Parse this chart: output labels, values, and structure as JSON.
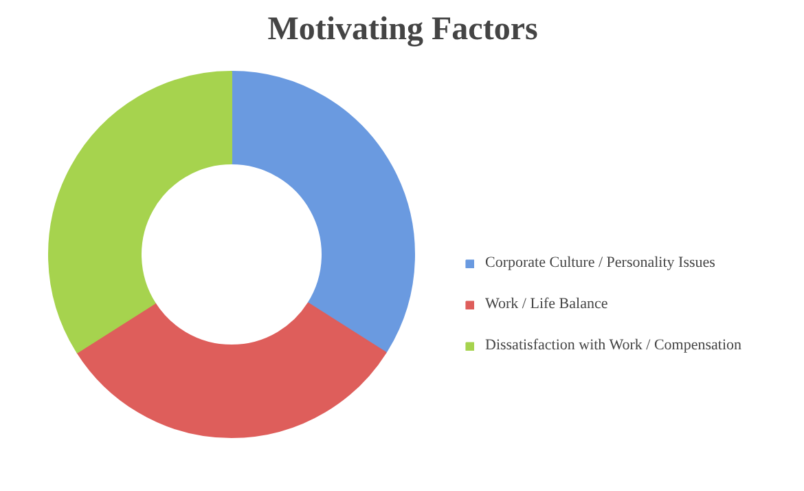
{
  "chart_data": {
    "type": "donut",
    "title": "Motivating Factors",
    "categories": [
      "Corporate Culture / Personality Issues",
      "Work / Life Balance",
      "Dissatisfaction with Work / Compensation"
    ],
    "values": [
      34,
      32,
      34
    ],
    "colors": [
      "#6a9ae0",
      "#de5e5b",
      "#a6d34e"
    ],
    "legend": "right"
  }
}
